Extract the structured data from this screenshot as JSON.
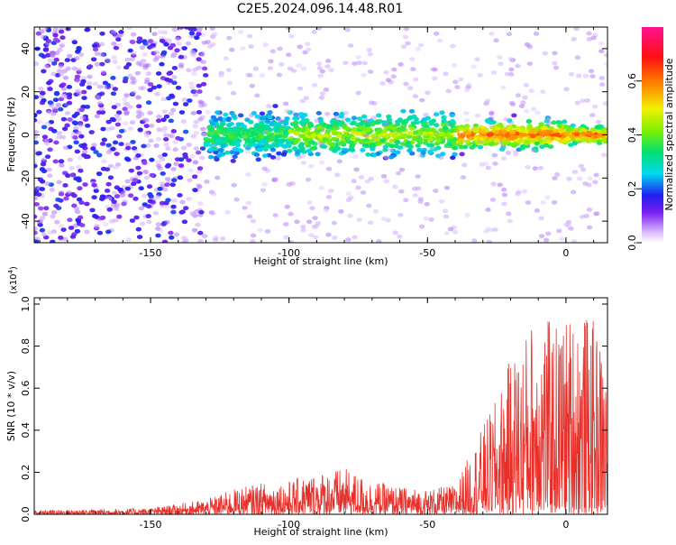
{
  "title": "C2E5.2024.096.14.48.R01",
  "chart_data": [
    {
      "type": "heatmap",
      "title": "C2E5.2024.096.14.48.R01",
      "xlabel": "Height of straight line (km)",
      "ylabel": "Frequency (Hz)",
      "xlim": [
        -192,
        15
      ],
      "ylim": [
        -50,
        50
      ],
      "xticks": [
        -150,
        -100,
        -50,
        0
      ],
      "yticks": [
        -40,
        -20,
        0,
        20,
        40
      ],
      "colorbar": {
        "label": "Normalized spectral amplitude",
        "range": [
          0.0,
          0.8
        ],
        "ticks": [
          0.0,
          0.2,
          0.4,
          0.6
        ]
      },
      "band_center_hz": 0
    },
    {
      "type": "line",
      "xlabel": "Height of straight line (km)",
      "ylabel": "SNR (10 * v/v)",
      "y_multiplier": "(x10^4)",
      "xlim": [
        -192,
        15
      ],
      "ylim": [
        0,
        1.03
      ],
      "xticks": [
        -150,
        -100,
        -50,
        0
      ],
      "yticks": [
        0.0,
        0.2,
        0.4,
        0.6,
        0.8,
        1.0
      ],
      "color": "#e8302a",
      "envelope": {
        "x": [
          -192,
          -170,
          -150,
          -140,
          -130,
          -120,
          -110,
          -100,
          -90,
          -80,
          -70,
          -60,
          -50,
          -40,
          -35,
          -30,
          -25,
          -20,
          -15,
          -10,
          -5,
          0,
          5,
          10,
          15
        ],
        "max": [
          0.02,
          0.025,
          0.03,
          0.05,
          0.07,
          0.12,
          0.15,
          0.16,
          0.2,
          0.22,
          0.16,
          0.13,
          0.12,
          0.14,
          0.28,
          0.42,
          0.55,
          0.75,
          0.85,
          1.02,
          0.9,
          0.95,
          0.98,
          0.92,
          0.75
        ]
      }
    }
  ]
}
